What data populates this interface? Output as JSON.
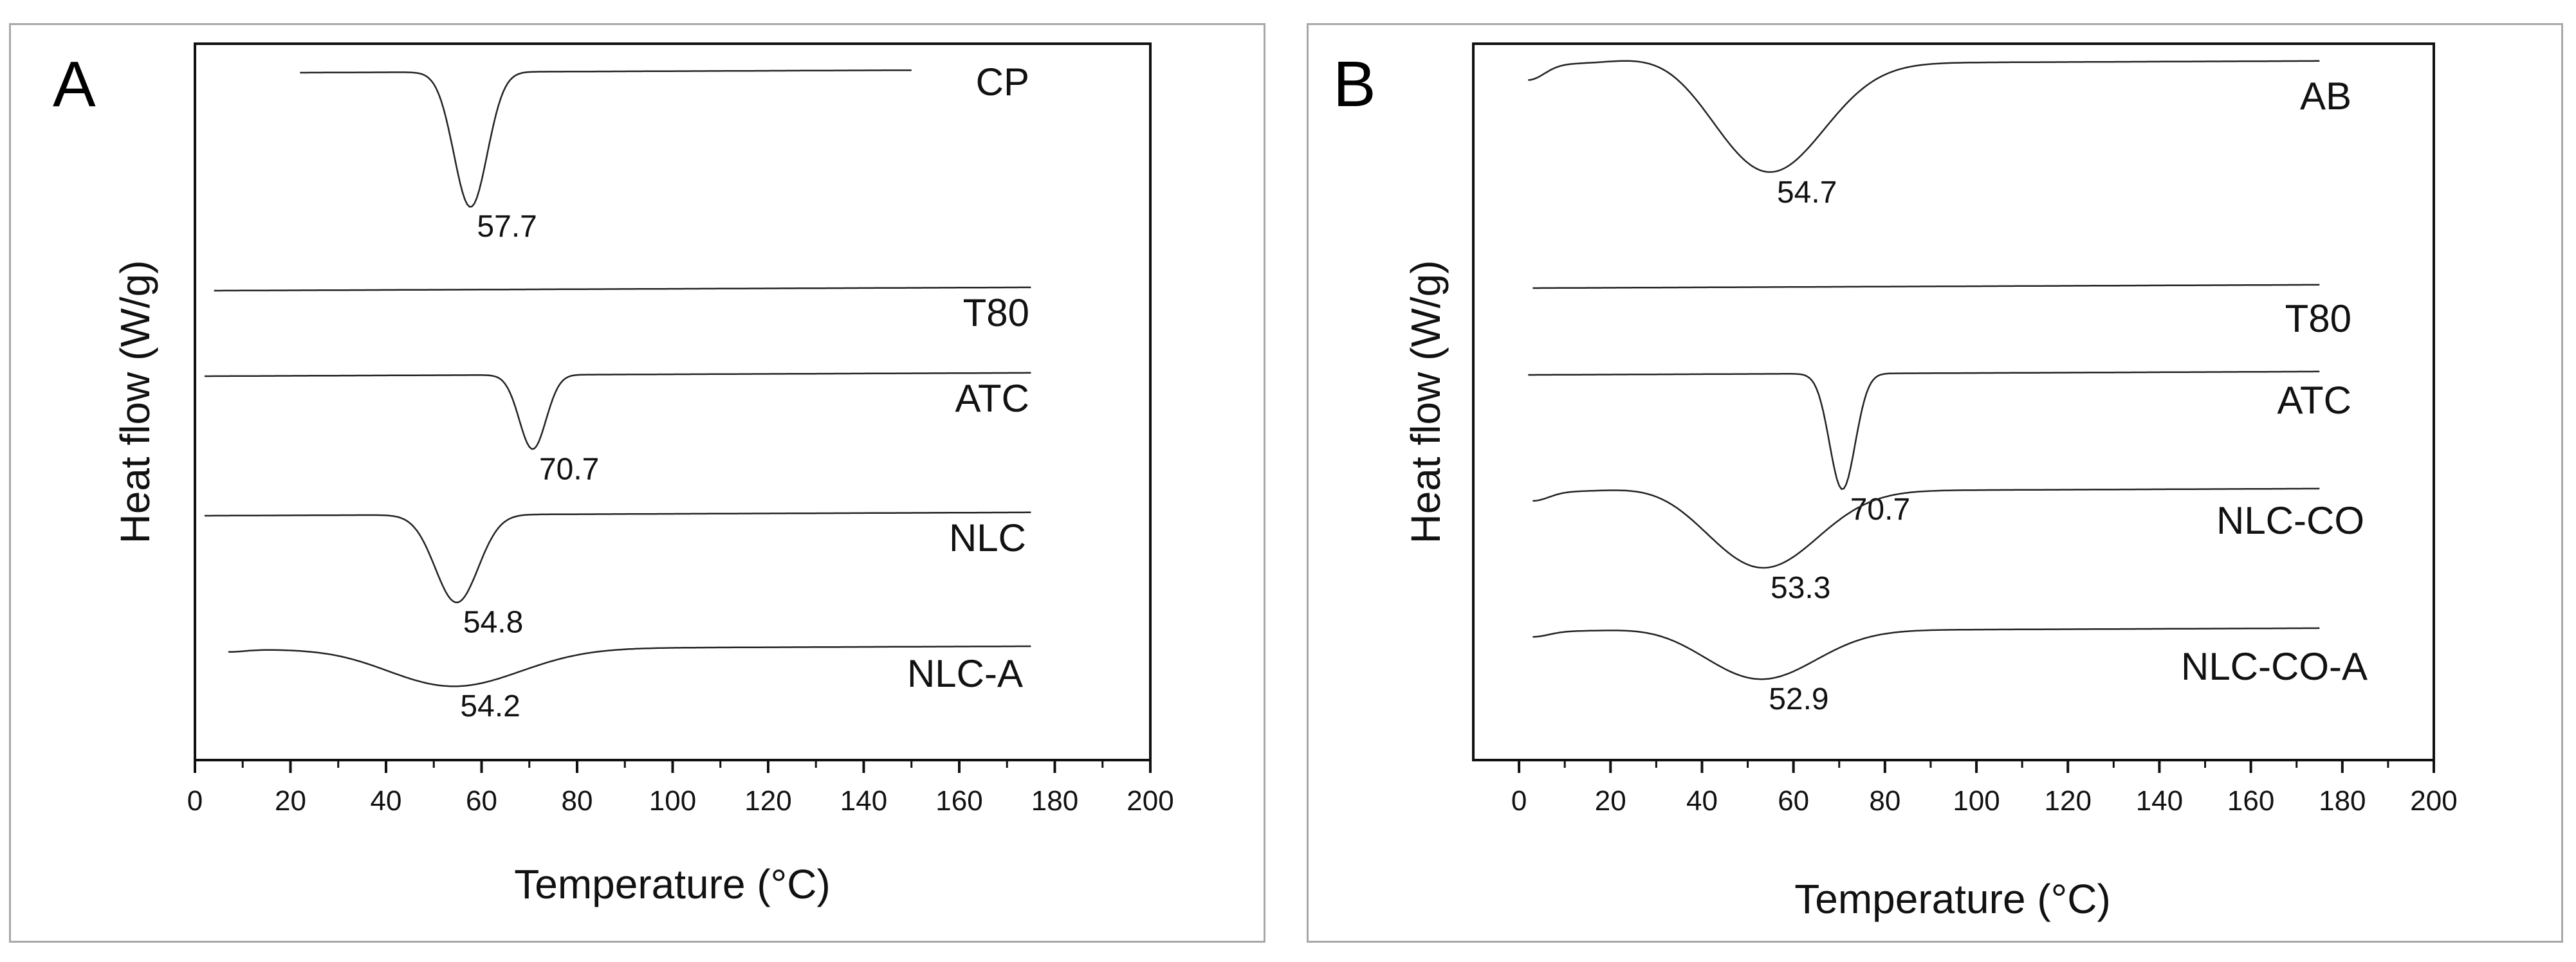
{
  "chart_data": [
    {
      "panel": "A",
      "type": "line",
      "xlabel": "Temperature (°C)",
      "ylabel": "Heat flow (W/g)",
      "xlim": [
        0,
        200
      ],
      "xticks": [
        0,
        20,
        40,
        60,
        80,
        100,
        120,
        140,
        160,
        180,
        200
      ],
      "series": [
        {
          "name": "CP",
          "x_start": 22,
          "x_end": 150,
          "peak_x": 57.7,
          "peak_label": "57.7",
          "depth": 1.0,
          "width": 3.5,
          "bump": 0
        },
        {
          "name": "T80",
          "x_start": 4,
          "x_end": 175,
          "peak_x": null,
          "peak_label": "",
          "depth": 0,
          "width": 0,
          "bump": 0
        },
        {
          "name": "ATC",
          "x_start": 2,
          "x_end": 175,
          "peak_x": 70.7,
          "peak_label": "70.7",
          "depth": 0.55,
          "width": 2.8,
          "bump": 0
        },
        {
          "name": "NLC",
          "x_start": 2,
          "x_end": 175,
          "peak_x": 54.8,
          "peak_label": "54.8",
          "depth": 0.65,
          "width": 4.5,
          "bump": 0
        },
        {
          "name": "NLC-A",
          "x_start": 7,
          "x_end": 175,
          "peak_x": 54.2,
          "peak_label": "54.2",
          "depth": 0.28,
          "width": 14,
          "bump": 0.05
        }
      ]
    },
    {
      "panel": "B",
      "type": "line",
      "xlabel": "Temperature (°C)",
      "ylabel": "Heat flow (W/g)",
      "xlim": [
        -10,
        200
      ],
      "xticks": [
        0,
        20,
        40,
        60,
        80,
        100,
        120,
        140,
        160,
        180,
        200
      ],
      "series": [
        {
          "name": "AB",
          "x_start": 2,
          "x_end": 175,
          "peak_x": 54.7,
          "peak_label": "54.7",
          "depth": 0.85,
          "width": 12,
          "bump": 0.35
        },
        {
          "name": "T80",
          "x_start": 3,
          "x_end": 175,
          "peak_x": null,
          "peak_label": "",
          "depth": 0,
          "width": 0,
          "bump": 0
        },
        {
          "name": "ATC",
          "x_start": 2,
          "x_end": 175,
          "peak_x": 70.7,
          "peak_label": "70.7",
          "depth": 0.9,
          "width": 2.8,
          "bump": 0
        },
        {
          "name": "NLC-CO",
          "x_start": 3,
          "x_end": 175,
          "peak_x": 53.3,
          "peak_label": "53.3",
          "depth": 0.6,
          "width": 12,
          "bump": 0.2
        },
        {
          "name": "NLC-CO-A",
          "x_start": 3,
          "x_end": 175,
          "peak_x": 52.9,
          "peak_label": "52.9",
          "depth": 0.38,
          "width": 12,
          "bump": 0.12
        }
      ]
    }
  ]
}
